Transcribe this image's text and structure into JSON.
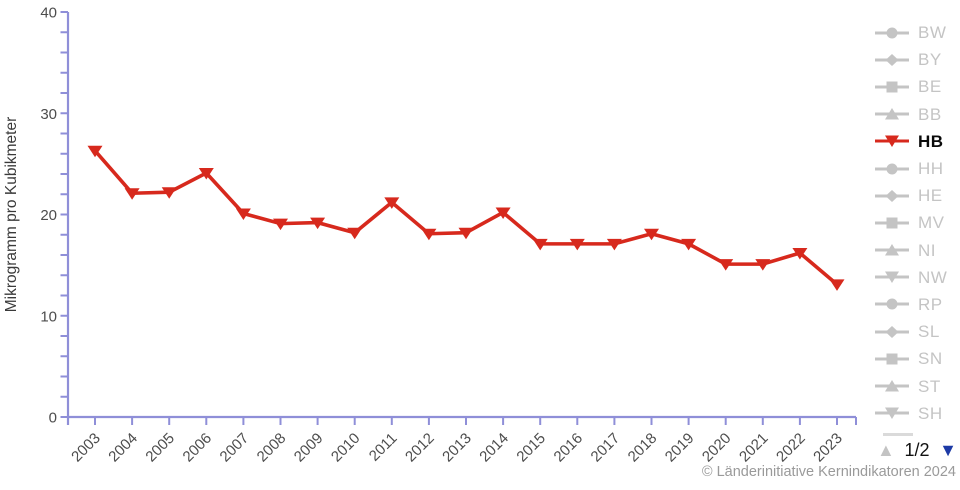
{
  "chart_data": {
    "type": "line",
    "x": [
      2003,
      2004,
      2005,
      2006,
      2007,
      2008,
      2009,
      2010,
      2011,
      2012,
      2013,
      2014,
      2015,
      2016,
      2017,
      2018,
      2019,
      2020,
      2021,
      2022,
      2023
    ],
    "series": [
      {
        "name": "HB",
        "color": "#d7291d",
        "marker": "triangle-down",
        "values": [
          26.3,
          22.1,
          22.2,
          24.1,
          20.1,
          19.1,
          19.2,
          18.2,
          21.2,
          18.1,
          18.2,
          20.2,
          17.1,
          17.1,
          17.1,
          18.1,
          17.1,
          15.1,
          15.1,
          16.2,
          13.1
        ]
      }
    ],
    "title": "",
    "xlabel": "",
    "ylabel": "Mikrogramm pro Kubikmeter",
    "ylim": [
      0,
      40
    ],
    "yticks_labeled": [
      0,
      10,
      20,
      30,
      40
    ],
    "ytick_minor_step": 2,
    "grid": false,
    "legend_position": "right"
  },
  "axis": {
    "color": "#8f8fd8",
    "tick_label_color": "#4d4d4d",
    "ylabel_color": "#3a3a3a"
  },
  "legend": {
    "items": [
      {
        "label": "BW",
        "shape": "circle"
      },
      {
        "label": "BY",
        "shape": "diamond"
      },
      {
        "label": "BE",
        "shape": "square"
      },
      {
        "label": "BB",
        "shape": "triangle-up"
      },
      {
        "label": "HB",
        "shape": "triangle-down",
        "active": true,
        "color": "#d7291d"
      },
      {
        "label": "HH",
        "shape": "circle"
      },
      {
        "label": "HE",
        "shape": "diamond"
      },
      {
        "label": "MV",
        "shape": "square"
      },
      {
        "label": "NI",
        "shape": "triangle-up"
      },
      {
        "label": "NW",
        "shape": "triangle-down"
      },
      {
        "label": "RP",
        "shape": "circle"
      },
      {
        "label": "SL",
        "shape": "diamond"
      },
      {
        "label": "SN",
        "shape": "square"
      },
      {
        "label": "ST",
        "shape": "triangle-up"
      },
      {
        "label": "SH",
        "shape": "triangle-down"
      }
    ],
    "inactive_color": "#c4c4c4",
    "active_text_color": "#0a0a0a",
    "has_clipped_item": true,
    "pagination": {
      "label": "1/2",
      "up_icon": "▲",
      "down_icon": "▼",
      "up_color": "#c3c3c3",
      "down_color": "#1d3aa6"
    }
  },
  "footer": {
    "copyright": "© Länderinitiative Kernindikatoren 2024",
    "color": "#9a9a9a"
  }
}
